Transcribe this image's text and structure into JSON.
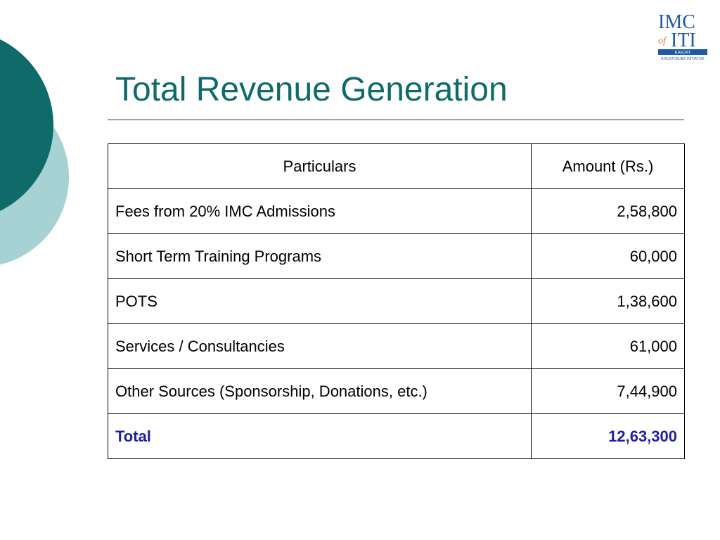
{
  "slide": {
    "title": "Total Revenue Generation",
    "accent_color": "#0f6a6a",
    "light_accent_color": "#a6d2d3",
    "total_color": "#1f1fa0"
  },
  "logo": {
    "line1": "IMC",
    "of": "of",
    "line2": "ITI",
    "place": "KARJAT",
    "tagline": "A RUSTOMJEE INITIATIVE"
  },
  "table": {
    "headers": {
      "particulars": "Particulars",
      "amount": "Amount (Rs.)"
    },
    "rows": [
      {
        "particular": "Fees from 20% IMC Admissions",
        "amount": "2,58,800"
      },
      {
        "particular": "Short Term Training Programs",
        "amount": "60,000"
      },
      {
        "particular": "POTS",
        "amount": "1,38,600"
      },
      {
        "particular": "Services / Consultancies",
        "amount": "61,000"
      },
      {
        "particular": "Other Sources (Sponsorship, Donations, etc.)",
        "amount": "7,44,900"
      }
    ],
    "total": {
      "label": "Total",
      "amount": "12,63,300"
    }
  }
}
